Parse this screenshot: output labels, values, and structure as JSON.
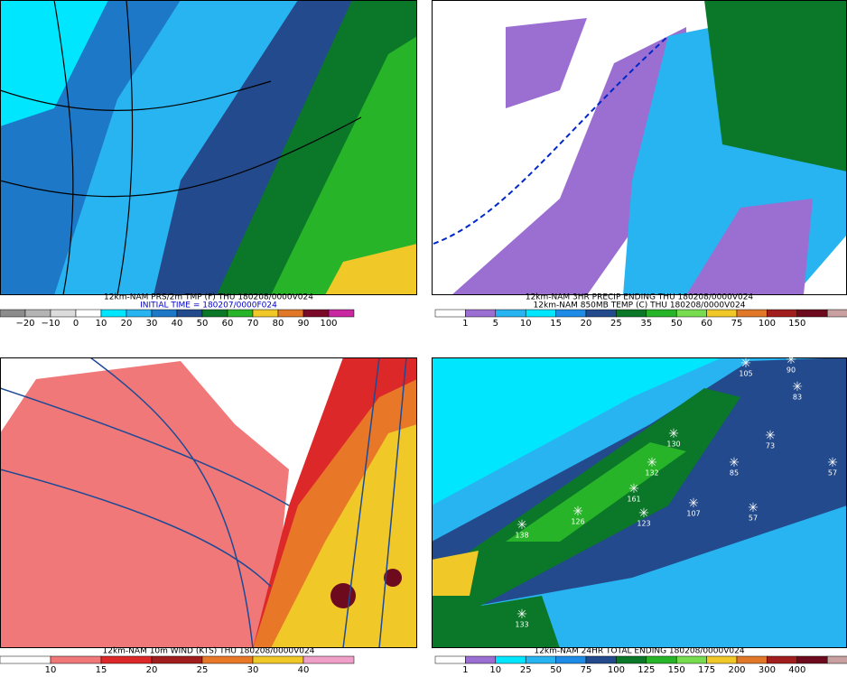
{
  "panels": [
    {
      "title": "12km-NAM PRS/2m TMP (F) THU 180208/0000V024",
      "subtitle": "INITIAL TIME = 180207/0000F024",
      "legend": {
        "labels": [
          "−20",
          "−10",
          "0",
          "10",
          "20",
          "30",
          "40",
          "50",
          "60",
          "70",
          "80",
          "90",
          "100"
        ],
        "colors": [
          "#8c8c8c",
          "#b4b4b4",
          "#dcdcdc",
          "#ffffff",
          "#00e6ff",
          "#28b4f0",
          "#1e78c8",
          "#234a8c",
          "#0a7828",
          "#28b428",
          "#f0c828",
          "#e07828",
          "#7a0a28",
          "#c828a0"
        ]
      }
    },
    {
      "title": "12km-NAM 3HR PRECIP ENDING THU 180208/0000V024",
      "subtitle": "12km-NAM 850MB TEMP (C) THU 180208/0000V024",
      "legend": {
        "labels": [
          "1",
          "5",
          "10",
          "15",
          "20",
          "25",
          "35",
          "50",
          "60",
          "75",
          "100",
          "150"
        ],
        "colors": [
          "#ffffff",
          "#9b6ed2",
          "#28b4f0",
          "#00e6ff",
          "#1e8ce6",
          "#234a8c",
          "#0a7828",
          "#28b428",
          "#78dc50",
          "#f0c828",
          "#e07828",
          "#a01e1e",
          "#6e0a1e",
          "#c8a0a0"
        ]
      }
    },
    {
      "title": "12km-NAM 10m WIND (KTS) THU 180208/0000V024",
      "legend": {
        "labels": [
          "10",
          "15",
          "20",
          "25",
          "30",
          "40"
        ],
        "colors": [
          "#ffffff",
          "#f07878",
          "#dc2828",
          "#a01e1e",
          "#e87828",
          "#f0c828",
          "#f0a0c8"
        ]
      }
    },
    {
      "title": "12km-NAM 24HR TOTAL ENDING 180208/0000V024",
      "legend": {
        "labels": [
          "1",
          "10",
          "25",
          "50",
          "75",
          "100",
          "125",
          "150",
          "175",
          "200",
          "300",
          "400"
        ],
        "colors": [
          "#ffffff",
          "#9b6ed2",
          "#00e6ff",
          "#28b4f0",
          "#1e8ce6",
          "#234a8c",
          "#0a7828",
          "#28b428",
          "#78dc50",
          "#f0c828",
          "#e07828",
          "#a01e1e",
          "#6e0a1e",
          "#c8a0a0"
        ]
      },
      "stations": [
        "105",
        "90",
        "83",
        "130",
        "73",
        "132",
        "85",
        "161",
        "57",
        "126",
        "138",
        "123",
        "107",
        "57",
        "133"
      ]
    }
  ]
}
